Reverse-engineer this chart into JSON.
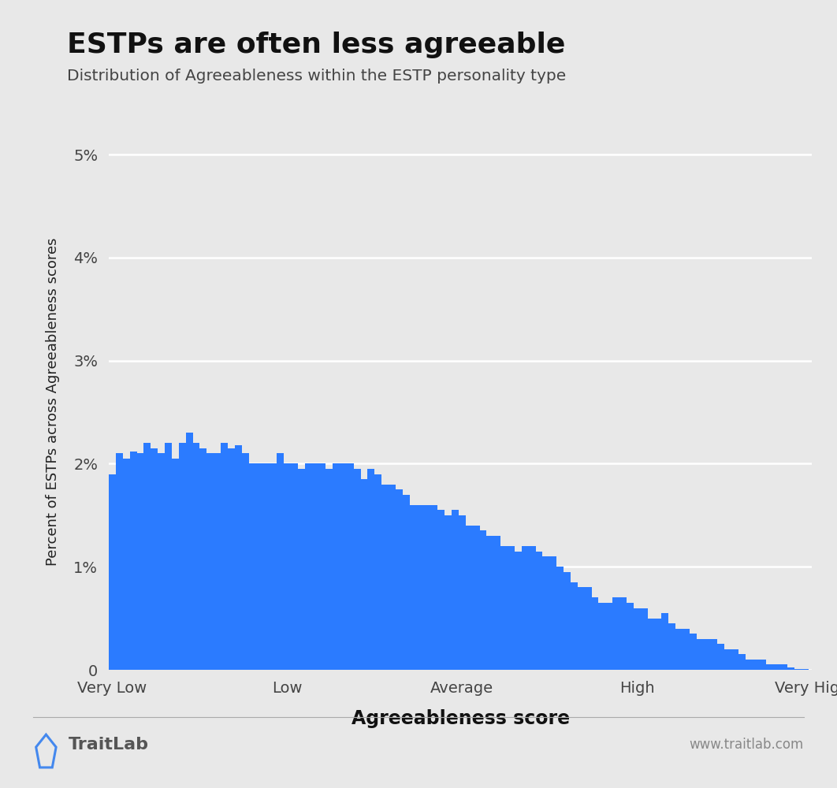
{
  "title": "ESTPs are often less agreeable",
  "subtitle": "Distribution of Agreeableness within the ESTP personality type",
  "xlabel": "Agreeableness score",
  "ylabel": "Percent of ESTPs across Agreeableness scores",
  "bar_color": "#2b7bff",
  "background_color": "#e8e8e8",
  "plot_bg_color": "#e8e8e8",
  "grid_color": "#ffffff",
  "ylim_max": 0.052,
  "yticks": [
    0,
    0.01,
    0.02,
    0.03,
    0.04,
    0.05
  ],
  "ytick_labels": [
    "0",
    "1%",
    "2%",
    "3%",
    "4%",
    "5%"
  ],
  "xtick_positions": [
    0,
    25,
    50,
    75,
    100
  ],
  "xtick_labels": [
    "Very Low",
    "Low",
    "Average",
    "High",
    "Very High"
  ],
  "logo_text": "TraitLab",
  "logo_color": "#555555",
  "logo_pentagon_color": "#4488ee",
  "watermark": "www.traitlab.com",
  "watermark_color": "#888888",
  "separator_color": "#aaaaaa",
  "title_color": "#111111",
  "subtitle_color": "#444444",
  "ylabel_color": "#222222",
  "xlabel_color": "#111111",
  "tick_label_color": "#444444",
  "bar_values": [
    0.019,
    0.021,
    0.0205,
    0.0212,
    0.021,
    0.022,
    0.0215,
    0.021,
    0.022,
    0.0205,
    0.022,
    0.023,
    0.022,
    0.0215,
    0.021,
    0.021,
    0.022,
    0.0215,
    0.0218,
    0.021,
    0.02,
    0.02,
    0.02,
    0.02,
    0.021,
    0.02,
    0.02,
    0.0195,
    0.02,
    0.02,
    0.02,
    0.0195,
    0.02,
    0.02,
    0.02,
    0.0195,
    0.0185,
    0.0195,
    0.019,
    0.018,
    0.018,
    0.0175,
    0.017,
    0.016,
    0.016,
    0.016,
    0.016,
    0.0155,
    0.015,
    0.0155,
    0.015,
    0.014,
    0.014,
    0.0135,
    0.013,
    0.013,
    0.012,
    0.012,
    0.0115,
    0.012,
    0.012,
    0.0115,
    0.011,
    0.011,
    0.01,
    0.0095,
    0.0085,
    0.008,
    0.008,
    0.007,
    0.0065,
    0.0065,
    0.007,
    0.007,
    0.0065,
    0.006,
    0.006,
    0.005,
    0.005,
    0.0055,
    0.0045,
    0.004,
    0.004,
    0.0035,
    0.003,
    0.003,
    0.003,
    0.0025,
    0.002,
    0.002,
    0.0015,
    0.001,
    0.001,
    0.001,
    0.0005,
    0.0005,
    0.0005,
    0.0002,
    0.0001,
    0.0001
  ]
}
